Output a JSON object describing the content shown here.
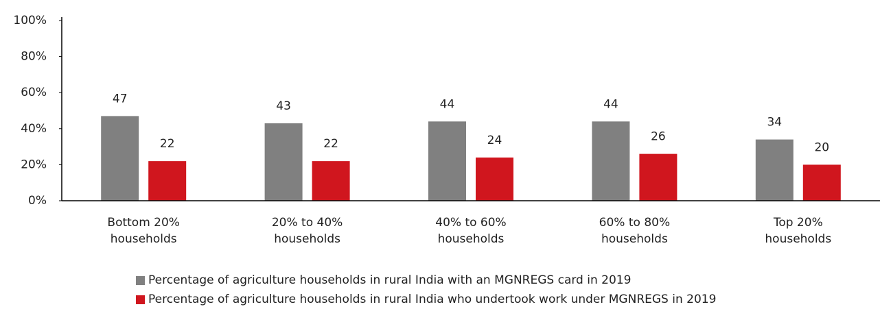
{
  "chart_data": {
    "type": "bar",
    "categories": [
      "Bottom 20% households",
      "20% to 40% households",
      "40% to 60% households",
      "60% to 80% households",
      "Top 20% households"
    ],
    "series": [
      {
        "name": "Percentage of agriculture households in rural India with an MGNREGS card in 2019",
        "color": "#808080",
        "values": [
          47,
          43,
          44,
          44,
          34
        ]
      },
      {
        "name": "Percentage of agriculture households in rural India who undertook work under MGNREGS in 2019",
        "color": "#d0161e",
        "values": [
          22,
          22,
          24,
          26,
          20
        ]
      }
    ],
    "ylim": [
      0,
      100
    ],
    "yticks": [
      {
        "value": 0,
        "label": "0%"
      },
      {
        "value": 20,
        "label": "20%"
      },
      {
        "value": 40,
        "label": "40%"
      },
      {
        "value": 60,
        "label": "60%"
      },
      {
        "value": 80,
        "label": "80%"
      },
      {
        "value": 100,
        "label": "100%"
      }
    ],
    "grid": false,
    "legend": "bottom"
  }
}
